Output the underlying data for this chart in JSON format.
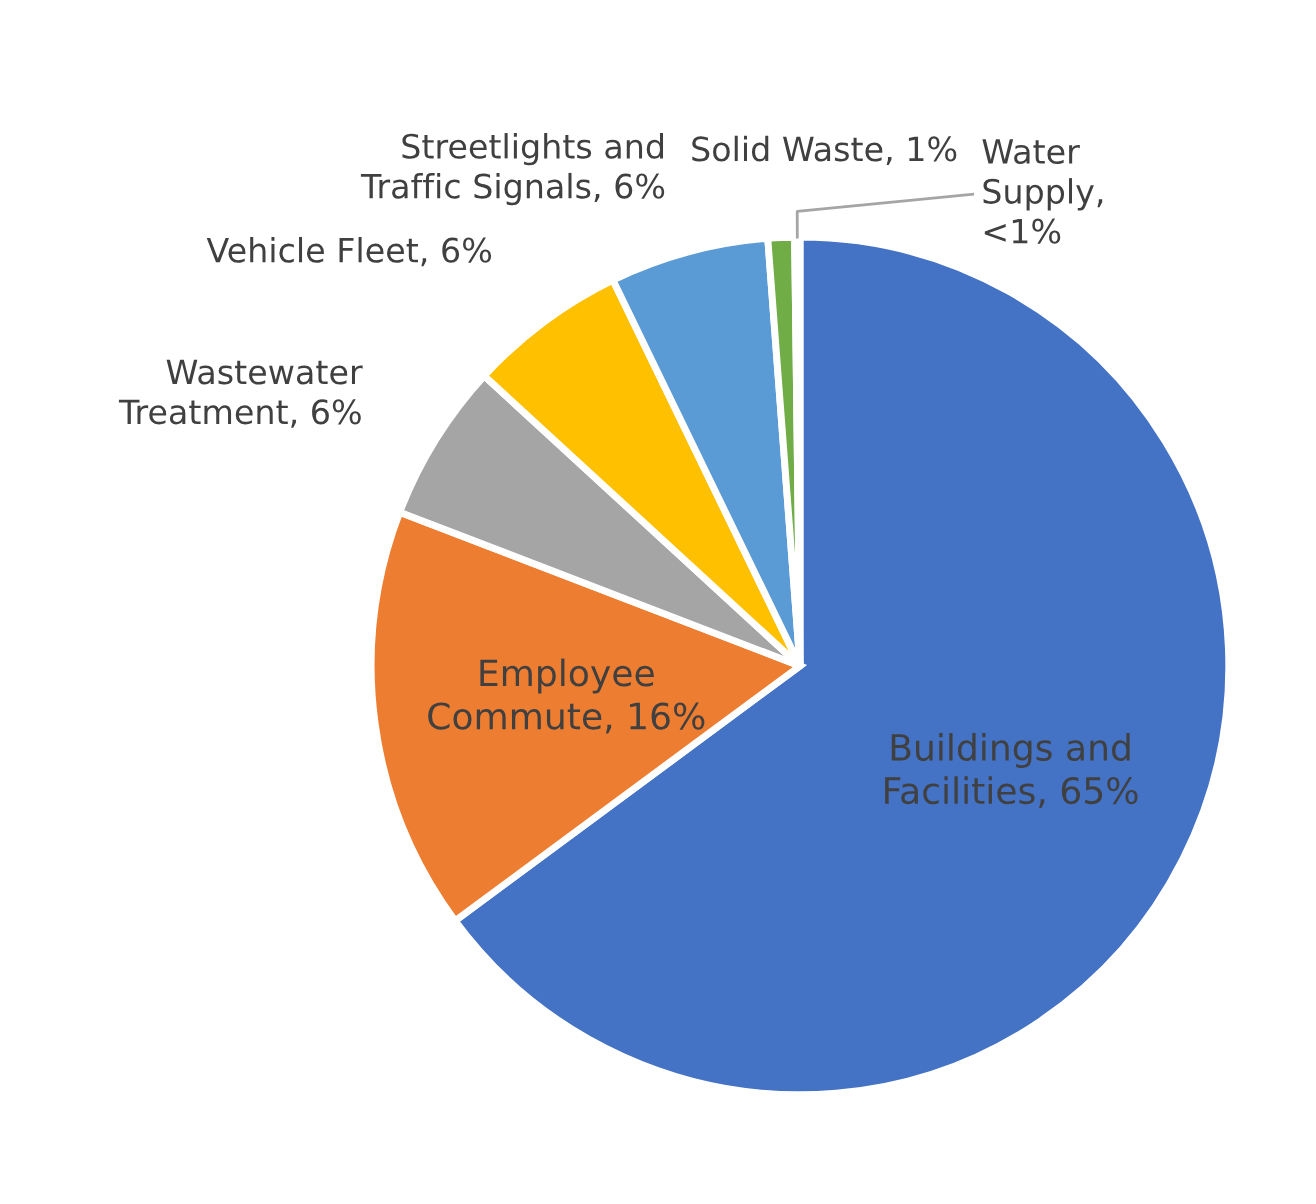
{
  "chart_data": {
    "type": "pie",
    "categories": [
      "Buildings and Facilities, 65%",
      "Employee Commute, 16%",
      "Wastewater Treatment, 6%",
      "Vehicle Fleet, 6%",
      "Streetlights and Traffic Signals, 6%",
      "Solid Waste, 1%",
      "Water Supply, <1%"
    ],
    "values": [
      65,
      16,
      6,
      6,
      6,
      1,
      0.2
    ],
    "colors": [
      "#4472c4",
      "#ed7d31",
      "#a5a5a5",
      "#ffc000",
      "#5b9bd5",
      "#70ad47",
      "#264478"
    ]
  }
}
